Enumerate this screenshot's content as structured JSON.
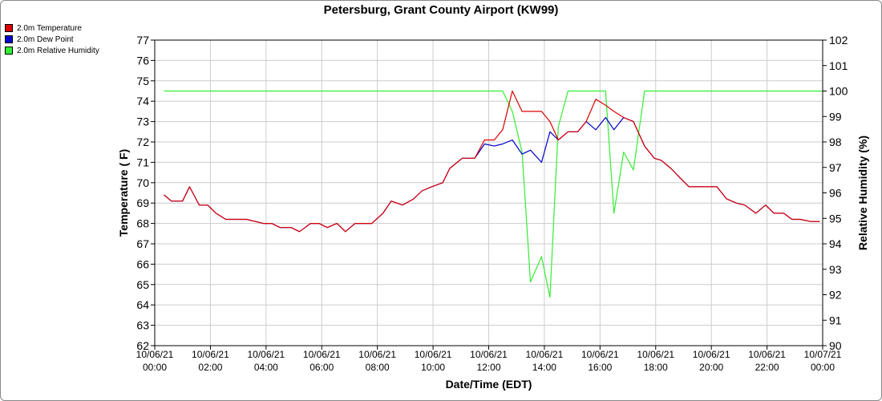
{
  "chart_data": {
    "type": "line",
    "title": "Petersburg, Grant County Airport (KW99)",
    "xlabel": "Date/Time (EDT)",
    "ylabel": "Temperature ( F)",
    "y2label": "Relative Humidity (%)",
    "xlim": [
      0,
      24
    ],
    "ylim": [
      62,
      77
    ],
    "y2lim": [
      90,
      102
    ],
    "yticks": [
      62,
      63,
      64,
      65,
      66,
      67,
      68,
      69,
      70,
      71,
      72,
      73,
      74,
      75,
      76,
      77
    ],
    "y2ticks": [
      90,
      91,
      92,
      93,
      94,
      95,
      96,
      97,
      98,
      99,
      100,
      101,
      102
    ],
    "xticks": [
      {
        "x": 0,
        "date": "10/06/21",
        "time": "00:00"
      },
      {
        "x": 2,
        "date": "10/06/21",
        "time": "02:00"
      },
      {
        "x": 4,
        "date": "10/06/21",
        "time": "04:00"
      },
      {
        "x": 6,
        "date": "10/06/21",
        "time": "06:00"
      },
      {
        "x": 8,
        "date": "10/06/21",
        "time": "08:00"
      },
      {
        "x": 10,
        "date": "10/06/21",
        "time": "10:00"
      },
      {
        "x": 12,
        "date": "10/06/21",
        "time": "12:00"
      },
      {
        "x": 14,
        "date": "10/06/21",
        "time": "14:00"
      },
      {
        "x": 16,
        "date": "10/06/21",
        "time": "16:00"
      },
      {
        "x": 18,
        "date": "10/06/21",
        "time": "18:00"
      },
      {
        "x": 20,
        "date": "10/06/21",
        "time": "20:00"
      },
      {
        "x": 22,
        "date": "10/06/21",
        "time": "22:00"
      },
      {
        "x": 24,
        "date": "10/07/21",
        "time": "00:00"
      }
    ],
    "grid": true,
    "legend_position": "top-left",
    "series": [
      {
        "name": "2.0m Temperature",
        "color": "#dd0000",
        "axis": "left",
        "x": [
          0.33,
          0.6,
          1.0,
          1.25,
          1.6,
          1.9,
          2.2,
          2.55,
          2.9,
          3.3,
          3.9,
          4.2,
          4.5,
          4.9,
          5.2,
          5.6,
          5.9,
          6.2,
          6.55,
          6.85,
          7.2,
          7.5,
          7.8,
          8.2,
          8.5,
          8.9,
          9.3,
          9.6,
          9.95,
          10.35,
          10.6,
          11.05,
          11.5,
          11.85,
          12.2,
          12.5,
          12.85,
          13.2,
          13.5,
          13.9,
          14.2,
          14.5,
          14.85,
          15.2,
          15.5,
          15.85,
          16.2,
          16.5,
          16.85,
          17.2,
          17.6,
          17.95,
          18.2,
          18.55,
          18.9,
          19.2,
          19.6,
          19.95,
          20.2,
          20.55,
          20.9,
          21.2,
          21.6,
          21.95,
          22.25,
          22.6,
          22.9,
          23.2,
          23.55,
          23.9
        ],
        "y": [
          69.4,
          69.1,
          69.1,
          69.8,
          68.9,
          68.9,
          68.5,
          68.2,
          68.2,
          68.2,
          68.0,
          68.0,
          67.8,
          67.8,
          67.6,
          68.0,
          68.0,
          67.8,
          68.0,
          67.6,
          68.0,
          68.0,
          68.0,
          68.5,
          69.1,
          68.9,
          69.2,
          69.6,
          69.8,
          70.0,
          70.7,
          71.2,
          71.2,
          72.1,
          72.1,
          72.6,
          74.5,
          73.5,
          73.5,
          73.5,
          73.0,
          72.1,
          72.5,
          72.5,
          73.0,
          74.1,
          73.8,
          73.5,
          73.2,
          73.0,
          71.8,
          71.2,
          71.1,
          70.7,
          70.2,
          69.8,
          69.8,
          69.8,
          69.8,
          69.2,
          69.0,
          68.9,
          68.5,
          68.9,
          68.5,
          68.5,
          68.2,
          68.2,
          68.1,
          68.1
        ]
      },
      {
        "name": "2.0m Dew Point",
        "color": "#0000cc",
        "axis": "left",
        "x": [
          0.33,
          0.6,
          1.0,
          1.25,
          1.6,
          1.9,
          2.2,
          2.55,
          2.9,
          3.3,
          3.9,
          4.2,
          4.5,
          4.9,
          5.2,
          5.6,
          5.9,
          6.2,
          6.55,
          6.85,
          7.2,
          7.5,
          7.8,
          8.2,
          8.5,
          8.9,
          9.3,
          9.6,
          9.95,
          10.35,
          10.6,
          11.05,
          11.5,
          11.85,
          12.2,
          12.5,
          12.85,
          13.2,
          13.5,
          13.9,
          14.2,
          14.5,
          14.85,
          15.2,
          15.5,
          15.85,
          16.2,
          16.5,
          16.85,
          17.2,
          17.6,
          17.95,
          18.2,
          18.55,
          18.9,
          19.2,
          19.6,
          19.95,
          20.2,
          20.55,
          20.9,
          21.2,
          21.6,
          21.95,
          22.25,
          22.6,
          22.9,
          23.2,
          23.55,
          23.9
        ],
        "y": [
          69.4,
          69.1,
          69.1,
          69.8,
          68.9,
          68.9,
          68.5,
          68.2,
          68.2,
          68.2,
          68.0,
          68.0,
          67.8,
          67.8,
          67.6,
          68.0,
          68.0,
          67.8,
          68.0,
          67.6,
          68.0,
          68.0,
          68.0,
          68.5,
          69.1,
          68.9,
          69.2,
          69.6,
          69.8,
          70.0,
          70.7,
          71.2,
          71.2,
          71.9,
          71.8,
          71.9,
          72.1,
          71.4,
          71.6,
          71.0,
          72.5,
          72.1,
          72.5,
          72.5,
          73.0,
          72.6,
          73.2,
          72.6,
          73.2,
          73.0,
          71.8,
          71.2,
          71.1,
          70.7,
          70.2,
          69.8,
          69.8,
          69.8,
          69.8,
          69.2,
          69.0,
          68.9,
          68.5,
          68.9,
          68.5,
          68.5,
          68.2,
          68.2,
          68.1,
          68.1
        ]
      },
      {
        "name": "2.0m Relative Humidity",
        "color": "#33ee33",
        "axis": "right",
        "x": [
          0.33,
          12.5,
          12.85,
          13.2,
          13.5,
          13.9,
          14.2,
          14.5,
          14.85,
          15.2,
          15.5,
          16.2,
          16.5,
          16.85,
          17.2,
          17.6,
          17.95,
          24.0
        ],
        "y": [
          100,
          100,
          99.2,
          97.6,
          92.5,
          93.5,
          91.9,
          98.6,
          100,
          100,
          100,
          100,
          95.2,
          97.6,
          96.9,
          100,
          100,
          100
        ]
      }
    ]
  }
}
